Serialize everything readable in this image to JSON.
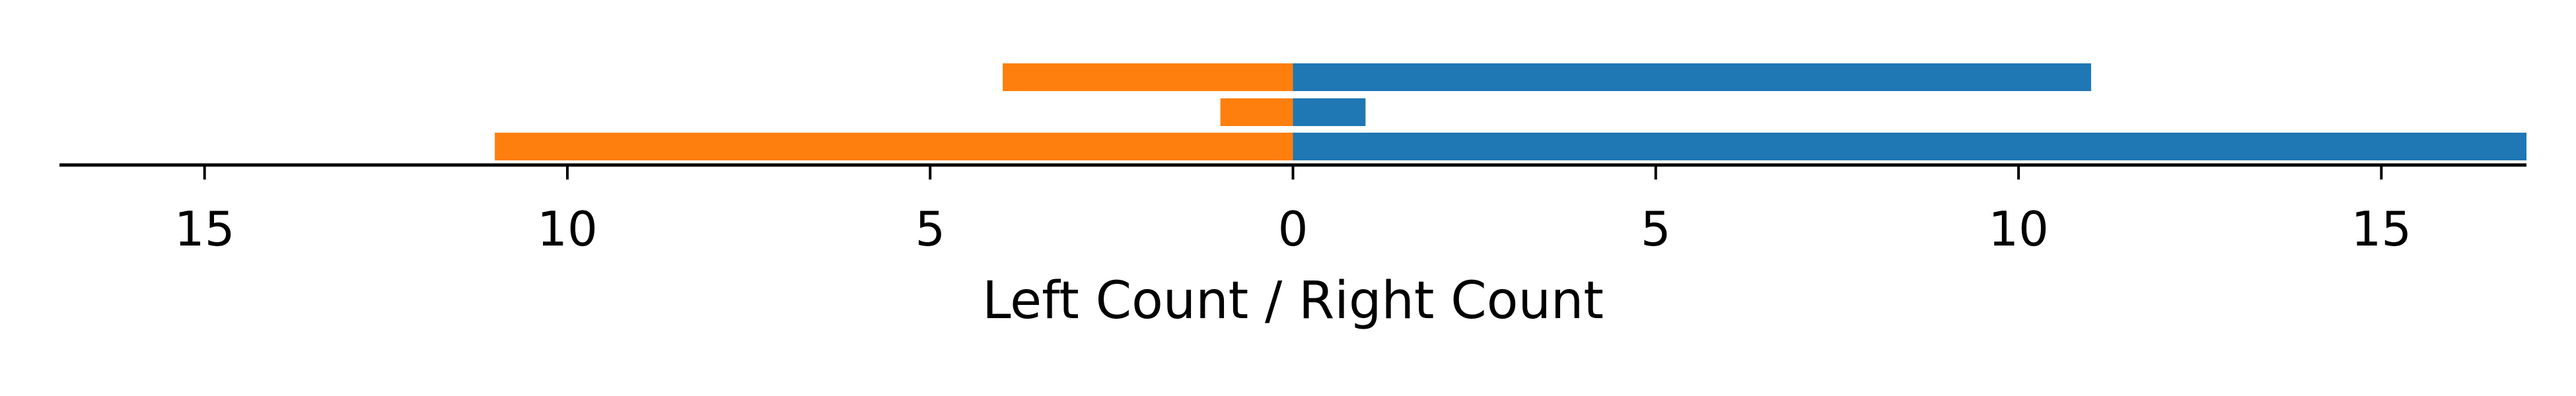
{
  "chart_data": {
    "type": "bar",
    "orientation": "horizontal-diverging",
    "xlabel": "Left Count / Right Count",
    "xlim": [
      -17,
      17
    ],
    "x_ticks": [
      -15,
      -10,
      -5,
      0,
      5,
      10,
      15
    ],
    "x_tick_labels": [
      "15",
      "10",
      "5",
      "0",
      "5",
      "10",
      "15"
    ],
    "grid": false,
    "legend": "none",
    "series": [
      {
        "key": "left",
        "color": "#ff7f0e",
        "direction": "left",
        "values": [
          11,
          1,
          4
        ]
      },
      {
        "key": "right",
        "color": "#1f77b4",
        "direction": "right",
        "values": [
          17,
          1,
          11
        ]
      }
    ]
  }
}
